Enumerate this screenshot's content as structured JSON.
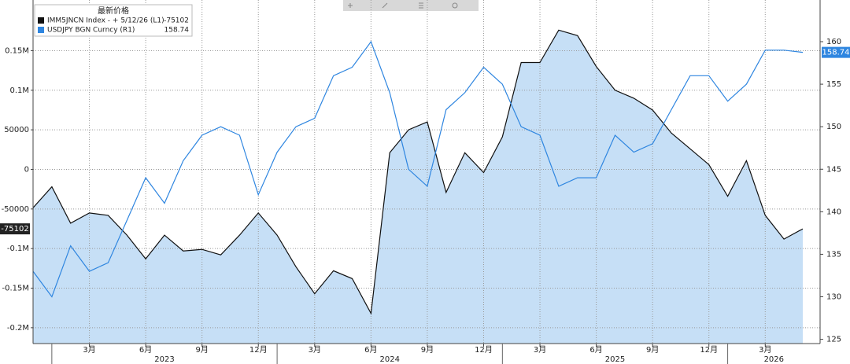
{
  "chart_data": {
    "type": "line",
    "legend_title": "最新价格",
    "x": [
      "2022-12",
      "2023-01",
      "2023-02",
      "2023-03",
      "2023-04",
      "2023-05",
      "2023-06",
      "2023-07",
      "2023-08",
      "2023-09",
      "2023-10",
      "2023-11",
      "2023-12",
      "2024-01",
      "2024-02",
      "2024-03",
      "2024-04",
      "2024-05",
      "2024-06",
      "2024-07",
      "2024-08",
      "2024-09",
      "2024-10",
      "2024-11",
      "2024-12",
      "2025-01",
      "2025-02",
      "2025-03",
      "2025-04",
      "2025-05",
      "2025-06",
      "2025-07",
      "2025-08",
      "2025-09",
      "2025-10",
      "2025-11",
      "2025-12",
      "2026-01",
      "2026-02",
      "2026-03",
      "2026-04",
      "2026-05"
    ],
    "xlim": [
      "2022-12",
      "2026-05"
    ],
    "xticks": [
      {
        "value": "2023-03",
        "label": "3月"
      },
      {
        "value": "2023-06",
        "label": "6月"
      },
      {
        "value": "2023-09",
        "label": "9月"
      },
      {
        "value": "2023-12",
        "label": "12月"
      },
      {
        "value": "2024-03",
        "label": "3月"
      },
      {
        "value": "2024-06",
        "label": "6月"
      },
      {
        "value": "2024-09",
        "label": "9月"
      },
      {
        "value": "2024-12",
        "label": "12月"
      },
      {
        "value": "2025-03",
        "label": "3月"
      },
      {
        "value": "2025-06",
        "label": "6月"
      },
      {
        "value": "2025-09",
        "label": "9月"
      },
      {
        "value": "2025-12",
        "label": "12月"
      },
      {
        "value": "2026-03",
        "label": "3月"
      }
    ],
    "year_labels": [
      "2023",
      "2024",
      "2025",
      "2026"
    ],
    "ylim": [
      -220000,
      214000
    ],
    "yticks": [
      {
        "value": -200000,
        "label": "-0.2M"
      },
      {
        "value": -150000,
        "label": "-0.15M"
      },
      {
        "value": -100000,
        "label": "-0.1M"
      },
      -50000,
      0,
      50000,
      {
        "value": 100000,
        "label": "0.1M"
      },
      {
        "value": 150000,
        "label": "0.15M"
      }
    ],
    "y2lim": [
      124.5,
      164.9
    ],
    "y2ticks": [
      125,
      130,
      135,
      140,
      145,
      150,
      155,
      160
    ],
    "grid": true,
    "series": [
      {
        "name": "IMM5JNCN Index - + 5/12/26 (L1)",
        "color": "#111111",
        "area_color": "#c6dff6",
        "axis": "y",
        "values": [
          -48500,
          -22000,
          -68000,
          -55000,
          -58000,
          -83000,
          -113000,
          -83000,
          -103000,
          -101000,
          -108000,
          -83000,
          -55000,
          -83000,
          -123000,
          -157000,
          -128000,
          -138000,
          -182000,
          21000,
          50000,
          60000,
          -29000,
          21000,
          -4000,
          41000,
          135000,
          135000,
          176000,
          169000,
          130000,
          100000,
          90000,
          75000,
          46000,
          26000,
          6000,
          -34000,
          11000,
          -58000,
          -88000,
          -75102
        ]
      },
      {
        "name": "USDJPY BGN Curncy (R1)",
        "color": "#2f86e0",
        "axis": "y2",
        "values": [
          133,
          130,
          136,
          133,
          134,
          139,
          144,
          141,
          146,
          149,
          150,
          149,
          142,
          147,
          150,
          151,
          156,
          157,
          160,
          154,
          145,
          143,
          152,
          154,
          157,
          155,
          150,
          149,
          143,
          144,
          144,
          149,
          147,
          148,
          152,
          156,
          156,
          153,
          155,
          159,
          159,
          158.74
        ]
      }
    ]
  }
}
